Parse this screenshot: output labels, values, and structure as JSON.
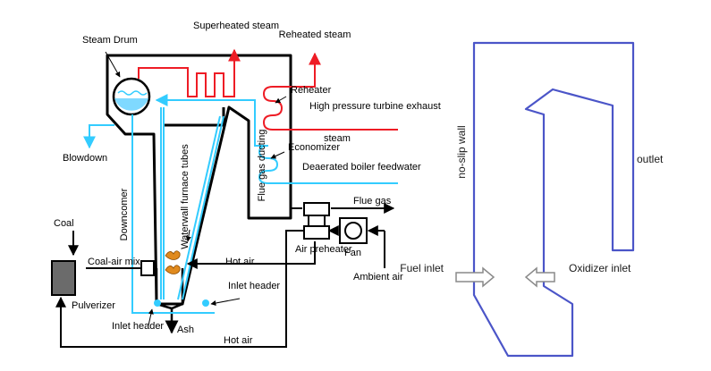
{
  "colors": {
    "steam_red": "#ee1c25",
    "water_cyan": "#33ccff",
    "structure_black": "#000000",
    "domain_blue": "#4b55c8",
    "arrow_gray": "#8a8a8a",
    "coal_flame": "#e08a1e",
    "pulverizer_fill": "#6b6b6b",
    "drum_water": "#7fd9ff"
  },
  "boiler": {
    "superheated_steam": "Superheated steam",
    "reheated_steam": "Reheated steam",
    "steam_drum": "Steam Drum",
    "reheater": "Reheater",
    "hp_turbine_exhaust": "High pressure turbine exhaust",
    "steam": "steam",
    "economizer": "Economizer",
    "deaerated_feedwater": "Deaerated boiler feedwater",
    "blowdown": "Blowdown",
    "downcomer": "Downcomer",
    "waterwall_tubes": "Waterwall furnace tubes",
    "flue_gas_ducting": "Flue gas ducting",
    "flue_gas": "Flue gas",
    "coal": "Coal",
    "coal_air_mix": "Coal-air mix",
    "pulverizer": "Pulverizer",
    "air_preheater": "Air preheater",
    "fan": "Fan",
    "ambient_air": "Ambient air",
    "hot_air_top": "Hot air",
    "hot_air_bottom": "Hot air",
    "inlet_header_right": "Inlet header",
    "inlet_header_left": "Inlet header",
    "ash": "Ash"
  },
  "domain": {
    "no_slip_wall": "no-slip wall",
    "outlet": "outlet",
    "fuel_inlet": "Fuel inlet",
    "oxidizer_inlet": "Oxidizer inlet"
  }
}
